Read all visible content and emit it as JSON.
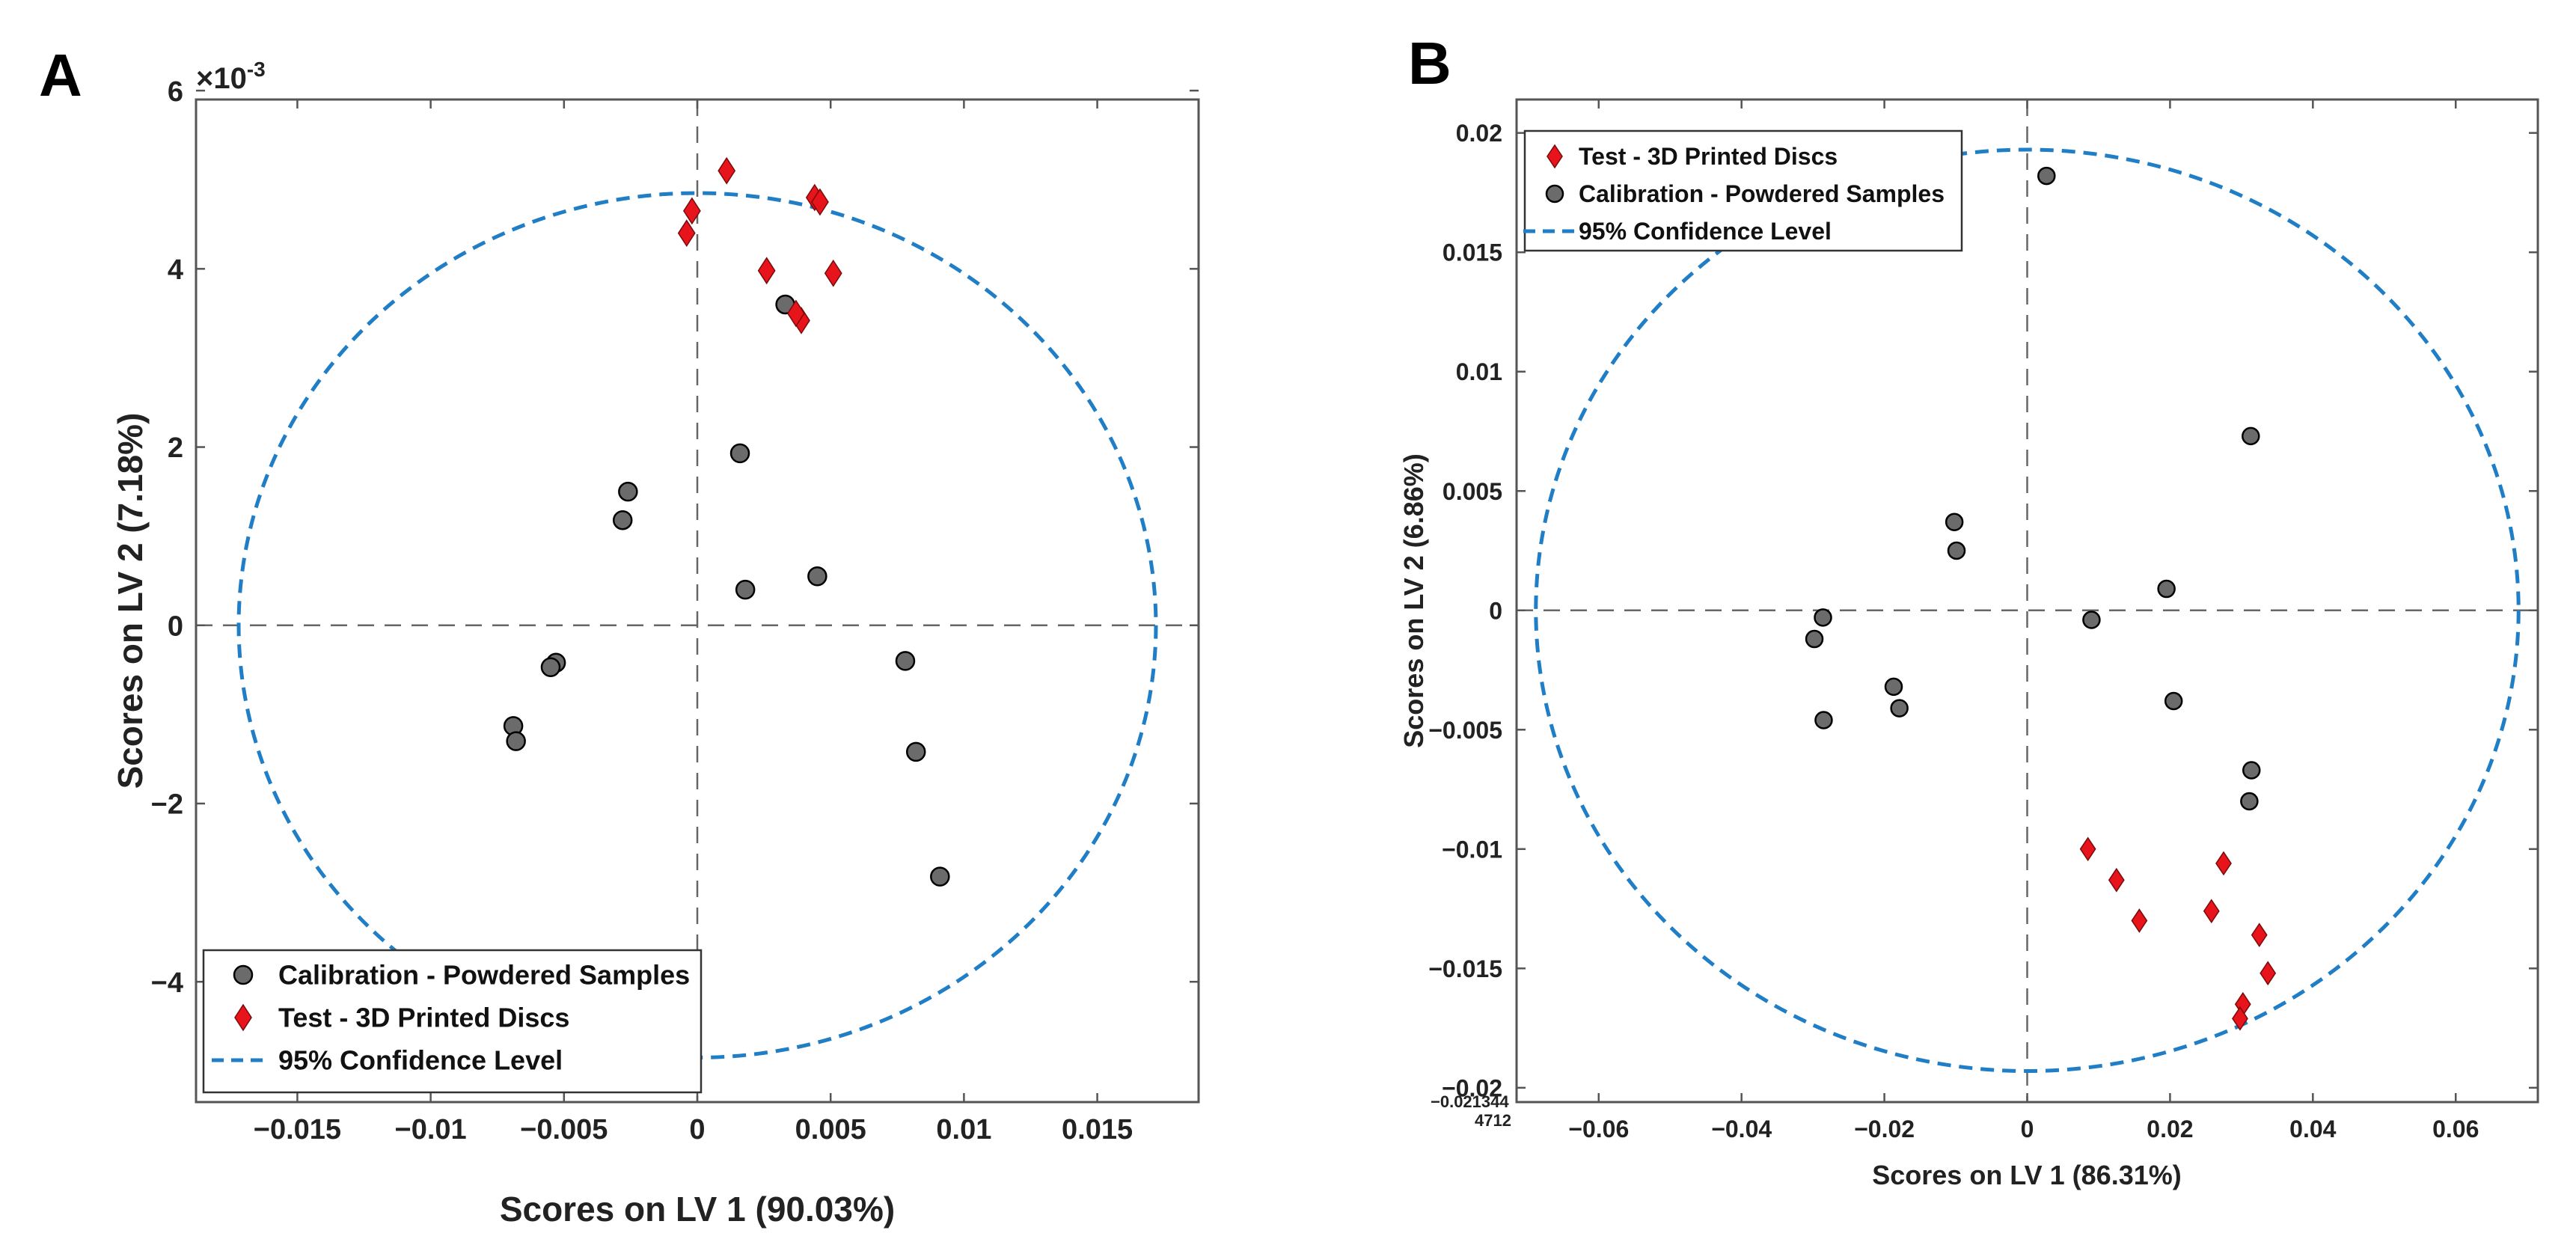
{
  "chart_data": [
    {
      "type": "scatter",
      "panel_label": "A",
      "xlabel": "Scores on LV 1 (90.03%)",
      "ylabel": "Scores on LV 2 (7.18%)",
      "y_multiplier": "×10",
      "y_multiplier_exp": "-3",
      "xlim": [
        -0.0188,
        0.0188
      ],
      "ylim": [
        -0.00535,
        0.0059
      ],
      "xticks": [
        -0.015,
        -0.01,
        -0.005,
        0,
        0.005,
        0.01,
        0.015
      ],
      "xtick_labels": [
        "−0.015",
        "−0.01",
        "−0.005",
        "0",
        "0.005",
        "0.01",
        "0.015"
      ],
      "yticks": [
        -0.004,
        -0.002,
        0,
        0.002,
        0.004,
        0.006
      ],
      "ytick_labels": [
        "−4",
        "−2",
        "0",
        "2",
        "4",
        "6"
      ],
      "grid": false,
      "legend_position": "bottom-left",
      "confidence_ellipse": {
        "cx": 0,
        "cy": 0,
        "rx": 0.0172,
        "ry": 0.00485
      },
      "series": [
        {
          "name": "Calibration - Powdered Samples",
          "marker": "circle",
          "color": "#6b6b6b",
          "points": [
            [
              0.0033,
              0.0036
            ],
            [
              0.0016,
              0.00193
            ],
            [
              -0.0026,
              0.0015
            ],
            [
              -0.0028,
              0.00118
            ],
            [
              0.0045,
              0.00055
            ],
            [
              0.0018,
              0.0004
            ],
            [
              -0.0053,
              -0.00042
            ],
            [
              -0.0055,
              -0.00047
            ],
            [
              -0.0069,
              -0.00113
            ],
            [
              -0.0068,
              -0.0013
            ],
            [
              0.0078,
              -0.0004
            ],
            [
              0.0082,
              -0.00142
            ],
            [
              0.0091,
              -0.00282
            ]
          ]
        },
        {
          "name": "Test - 3D Printed Discs",
          "marker": "diamond",
          "color": "#e8141c",
          "points": [
            [
              0.0011,
              0.0051
            ],
            [
              0.0044,
              0.0048
            ],
            [
              0.0046,
              0.00475
            ],
            [
              -0.0002,
              0.00465
            ],
            [
              -0.0004,
              0.0044
            ],
            [
              0.0026,
              0.00398
            ],
            [
              0.0051,
              0.00395
            ],
            [
              0.0039,
              0.00342
            ],
            [
              0.0037,
              0.0035
            ]
          ]
        }
      ],
      "legend": [
        {
          "label": "Calibration - Powdered Samples",
          "marker": "circle"
        },
        {
          "label": "Test - 3D Printed Discs",
          "marker": "diamond"
        },
        {
          "label": "95% Confidence Level",
          "marker": "dash"
        }
      ]
    },
    {
      "type": "scatter",
      "panel_label": "B",
      "xlabel": "Scores on LV 1 (86.31%)",
      "ylabel": "Scores on LV 2 (6.86%)",
      "xlim": [
        -0.0715,
        0.0715
      ],
      "ylim": [
        -0.0206,
        0.0214
      ],
      "xticks": [
        -0.06,
        -0.04,
        -0.02,
        0,
        0.02,
        0.04,
        0.06
      ],
      "xtick_labels": [
        "−0.06",
        "−0.04",
        "−0.02",
        "0",
        "0.02",
        "0.04",
        "0.06"
      ],
      "yticks": [
        -0.02,
        -0.015,
        -0.01,
        -0.005,
        0,
        0.005,
        0.01,
        0.015,
        0.02
      ],
      "ytick_labels": [
        "−0.02",
        "−0.015",
        "−0.01",
        "−0.005",
        "0",
        "0.005",
        "0.01",
        "0.015",
        "0.02"
      ],
      "corner_labels": [
        "−0.021344",
        "4712"
      ],
      "grid": false,
      "legend_position": "top-left",
      "confidence_ellipse": {
        "cx": 0,
        "cy": 0,
        "rx": 0.0688,
        "ry": 0.0193
      },
      "series": [
        {
          "name": "Test - 3D Printed Discs",
          "marker": "diamond",
          "color": "#e8141c",
          "points": [
            [
              0.0085,
              -0.01
            ],
            [
              0.0125,
              -0.0113
            ],
            [
              0.0157,
              -0.013
            ],
            [
              0.0258,
              -0.0126
            ],
            [
              0.0275,
              -0.0106
            ],
            [
              0.0325,
              -0.0136
            ],
            [
              0.0337,
              -0.0152
            ],
            [
              0.0302,
              -0.0165
            ],
            [
              0.0298,
              -0.0171
            ]
          ]
        },
        {
          "name": "Calibration - Powdered Samples",
          "marker": "circle",
          "color": "#6b6b6b",
          "points": [
            [
              0.0027,
              0.0182
            ],
            [
              0.0313,
              0.0073
            ],
            [
              -0.0102,
              0.0037
            ],
            [
              -0.0099,
              0.0025
            ],
            [
              0.0195,
              0.0009
            ],
            [
              0.009,
              -0.0004
            ],
            [
              -0.0286,
              -0.0003
            ],
            [
              -0.0298,
              -0.0012
            ],
            [
              -0.0187,
              -0.0032
            ],
            [
              -0.0179,
              -0.0041
            ],
            [
              0.0205,
              -0.0038
            ],
            [
              -0.0285,
              -0.0046
            ],
            [
              0.0314,
              -0.0067
            ],
            [
              0.0311,
              -0.008
            ]
          ]
        }
      ],
      "legend": [
        {
          "label": "Test - 3D Printed Discs",
          "marker": "diamond"
        },
        {
          "label": "Calibration - Powdered Samples",
          "marker": "circle"
        },
        {
          "label": "95% Confidence Level",
          "marker": "dash"
        }
      ]
    }
  ]
}
